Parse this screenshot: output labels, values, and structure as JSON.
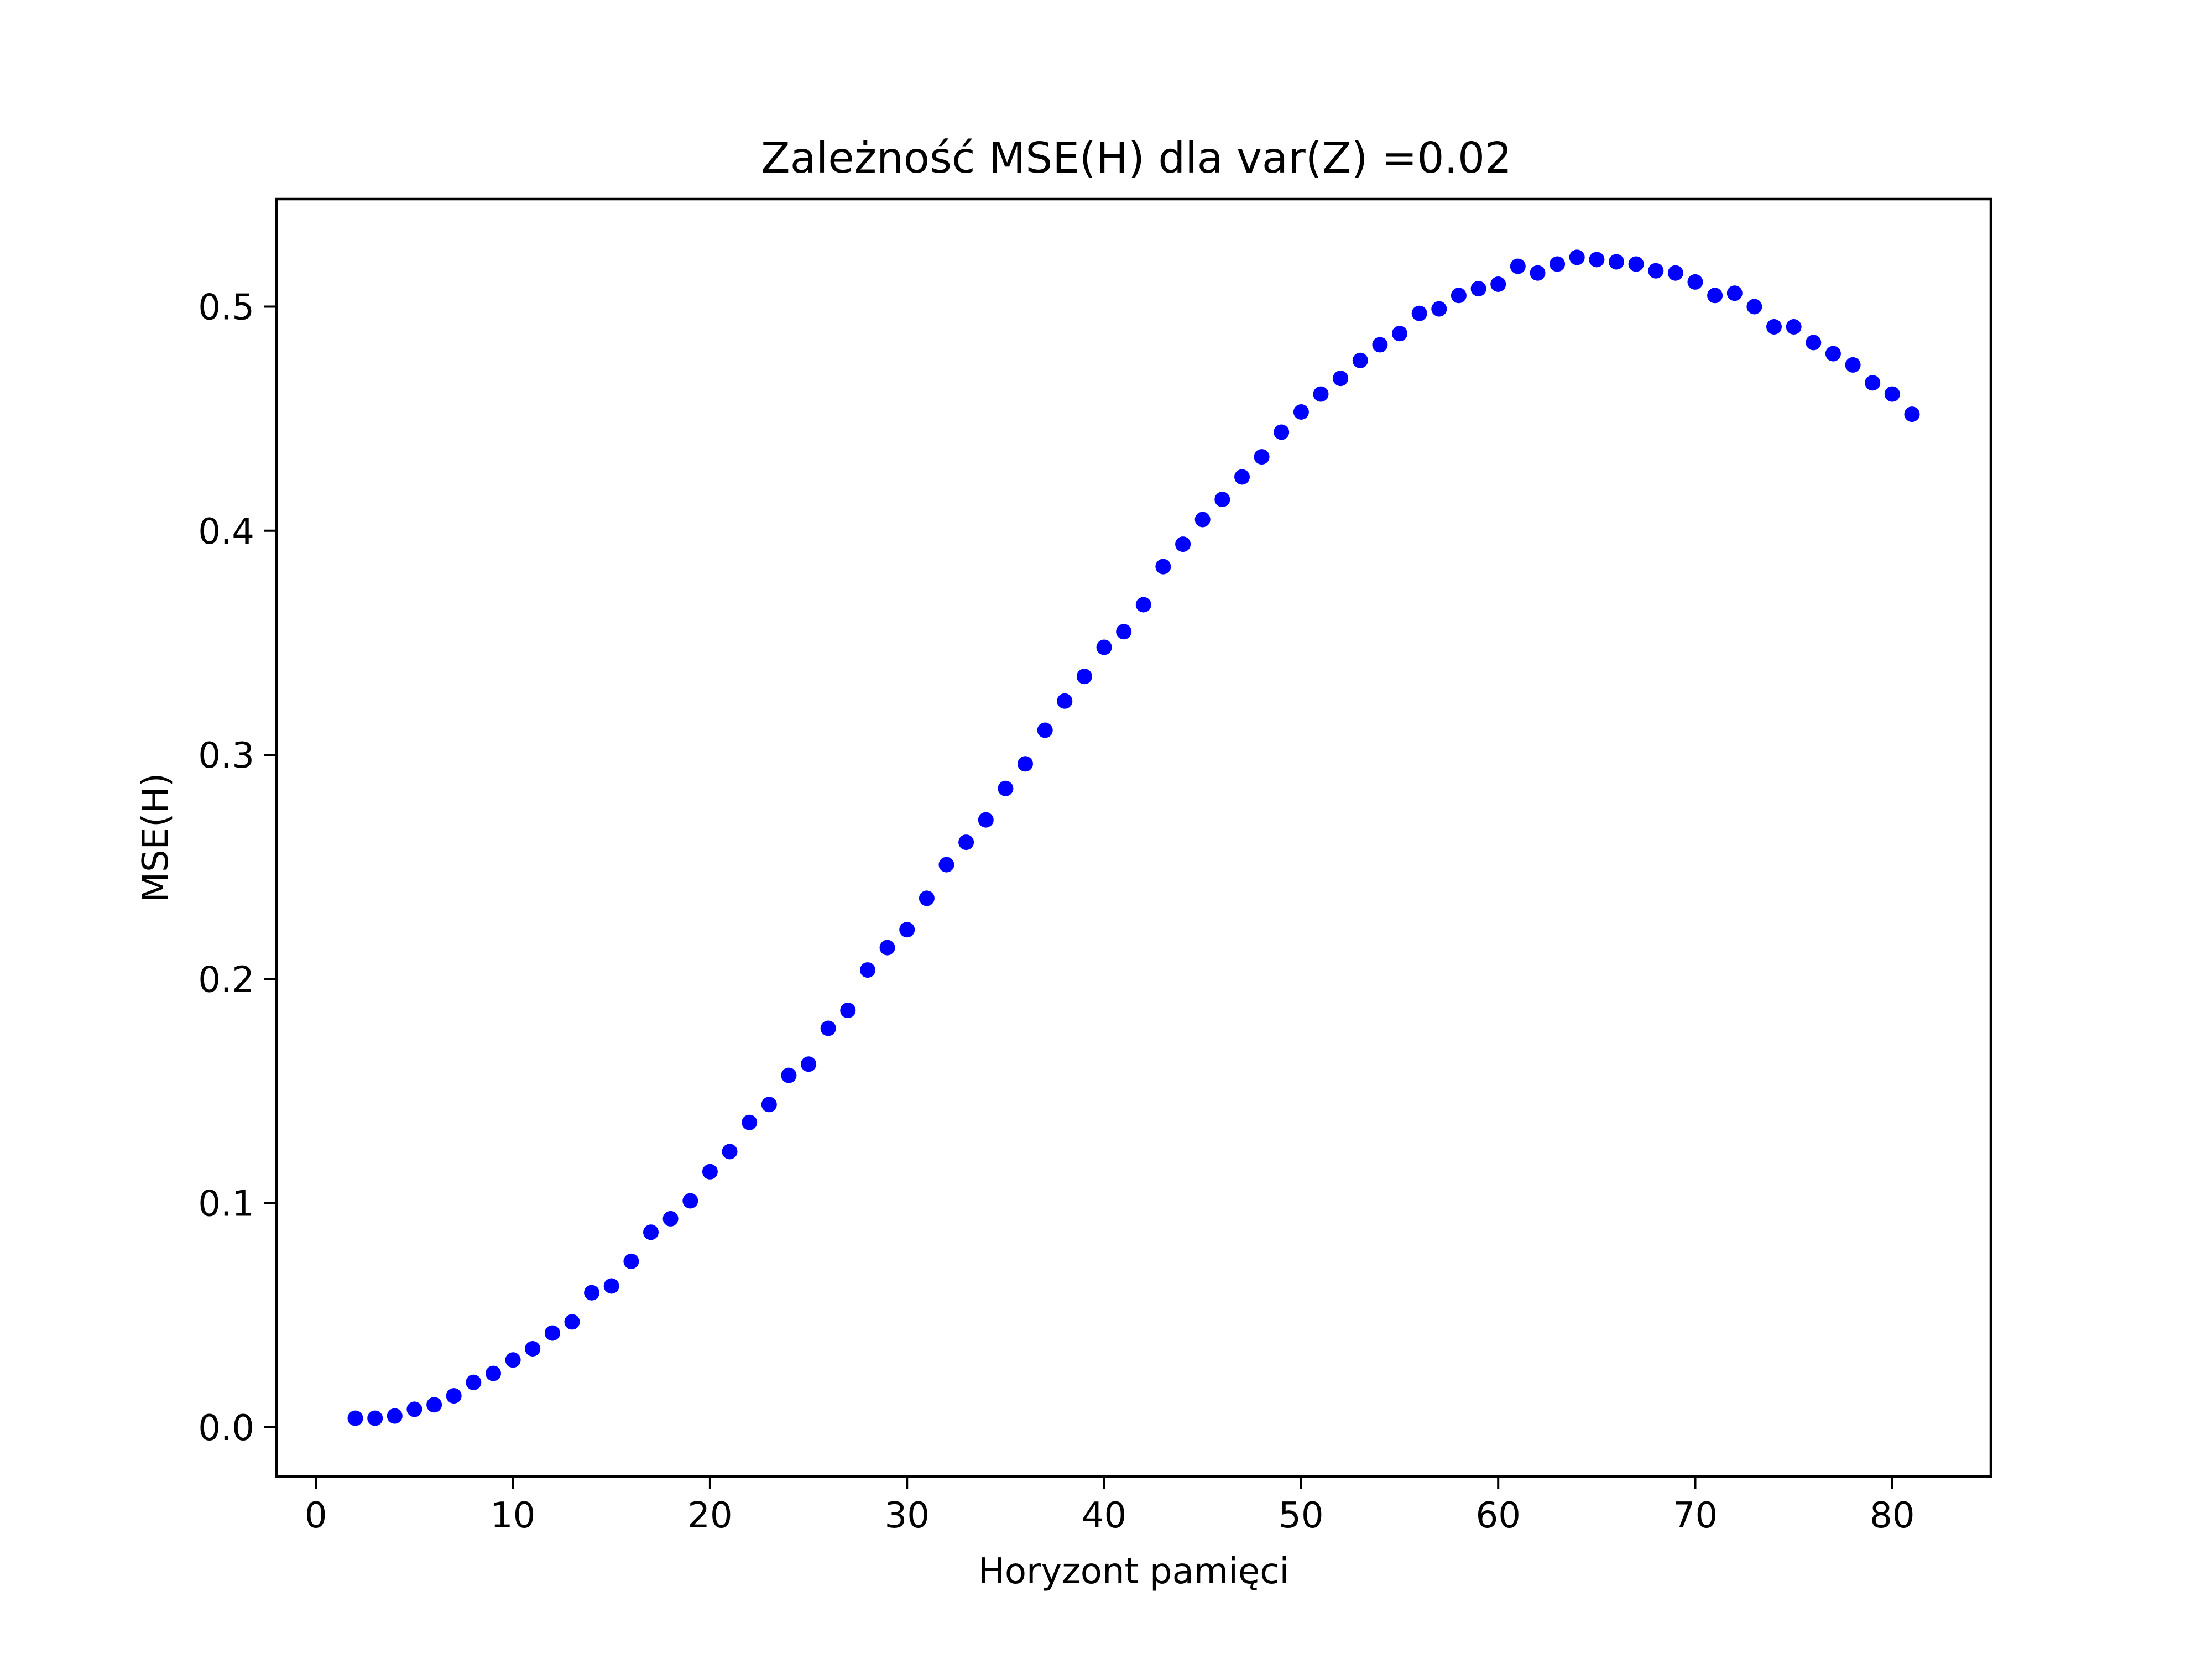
{
  "chart_data": {
    "type": "scatter",
    "title": "Zależność MSE(H) dla var(Z) =0.02",
    "xlabel": "Horyzont pamięci",
    "ylabel": "MSE(H)",
    "xlim": [
      -2.0,
      85.0
    ],
    "ylim": [
      -0.022,
      0.548
    ],
    "xticks": [
      0,
      10,
      20,
      30,
      40,
      50,
      60,
      70,
      80
    ],
    "xtick_labels": [
      "0",
      "10",
      "20",
      "30",
      "40",
      "50",
      "60",
      "70",
      "80"
    ],
    "yticks": [
      0.0,
      0.1,
      0.2,
      0.3,
      0.4,
      0.5
    ],
    "ytick_labels": [
      "0.0",
      "0.1",
      "0.2",
      "0.3",
      "0.4",
      "0.5"
    ],
    "grid": false,
    "marker_color": "#0000ff",
    "x": [
      2,
      3,
      4,
      5,
      6,
      7,
      8,
      9,
      10,
      11,
      12,
      13,
      14,
      15,
      16,
      17,
      18,
      19,
      20,
      21,
      22,
      23,
      24,
      25,
      26,
      27,
      28,
      29,
      30,
      31,
      32,
      33,
      34,
      35,
      36,
      37,
      38,
      39,
      40,
      41,
      42,
      43,
      44,
      45,
      46,
      47,
      48,
      49,
      50,
      51,
      52,
      53,
      54,
      55,
      56,
      57,
      58,
      59,
      60,
      61,
      62,
      63,
      64,
      65,
      66,
      67,
      68,
      69,
      70,
      71,
      72,
      73,
      74,
      75,
      76,
      77,
      78,
      79,
      80,
      81
    ],
    "y": [
      0.004,
      0.004,
      0.005,
      0.008,
      0.01,
      0.014,
      0.02,
      0.024,
      0.03,
      0.035,
      0.042,
      0.047,
      0.06,
      0.063,
      0.074,
      0.087,
      0.093,
      0.101,
      0.114,
      0.123,
      0.136,
      0.144,
      0.157,
      0.162,
      0.178,
      0.186,
      0.204,
      0.214,
      0.222,
      0.236,
      0.251,
      0.261,
      0.271,
      0.285,
      0.296,
      0.311,
      0.324,
      0.335,
      0.348,
      0.355,
      0.367,
      0.384,
      0.394,
      0.405,
      0.414,
      0.424,
      0.433,
      0.444,
      0.453,
      0.461,
      0.468,
      0.476,
      0.483,
      0.488,
      0.497,
      0.499,
      0.505,
      0.508,
      0.51,
      0.518,
      0.515,
      0.519,
      0.522,
      0.521,
      0.52,
      0.519,
      0.516,
      0.515,
      0.511,
      0.505,
      0.506,
      0.5,
      0.491,
      0.491,
      0.484,
      0.479,
      0.474,
      0.466,
      0.461,
      0.452
    ]
  }
}
